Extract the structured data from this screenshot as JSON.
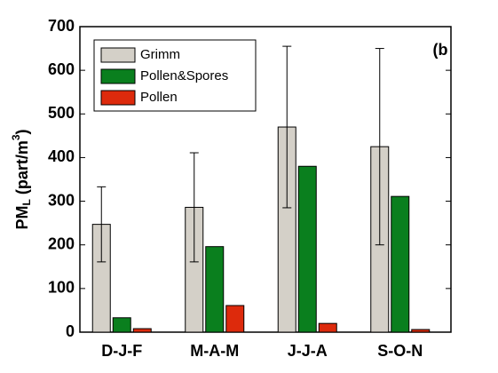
{
  "chart_data": {
    "type": "bar",
    "annotation": "(b",
    "ylabel_parts": [
      "PM",
      "L",
      " (part/m",
      "3",
      ")"
    ],
    "categories": [
      "D-J-F",
      "M-A-M",
      "J-J-A",
      "S-O-N"
    ],
    "series": [
      {
        "name": "Grimm",
        "color": "#d4d0c8",
        "values": [
          247,
          286,
          470,
          425
        ],
        "errors": [
          86,
          125,
          185,
          225
        ]
      },
      {
        "name": "Pollen&Spores",
        "color": "#0a7f1e",
        "values": [
          33,
          196,
          380,
          311
        ]
      },
      {
        "name": "Pollen",
        "color": "#dd2a0c",
        "values": [
          8,
          61,
          20,
          6
        ]
      }
    ],
    "ylim": [
      0,
      700
    ],
    "yticks": [
      0,
      100,
      200,
      300,
      400,
      500,
      600,
      700
    ],
    "grid": false
  }
}
